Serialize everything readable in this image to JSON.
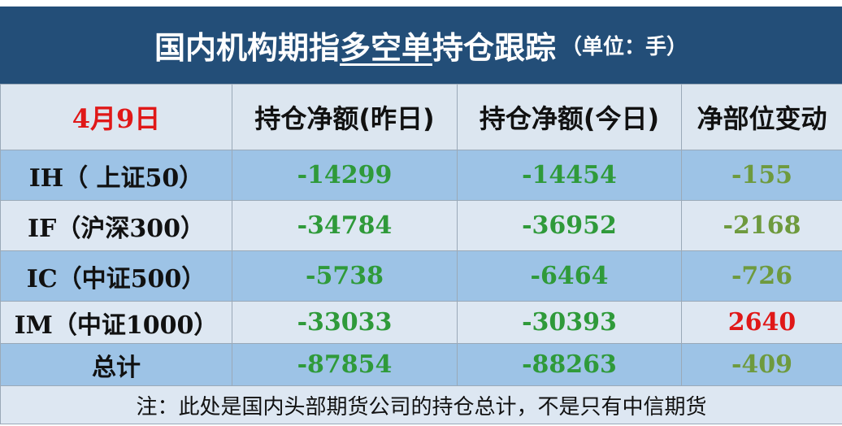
{
  "header": {
    "title": [
      "国内机构期指",
      "多空单",
      "持仓跟踪"
    ],
    "unit": "（单位：手）"
  },
  "table": {
    "columns": [
      "4月9日",
      "持仓净额(昨日)",
      "持仓净额(今日)",
      "净部位变动"
    ],
    "rows": [
      [
        "IH（ 上证50）",
        -14299,
        -14454,
        -155
      ],
      [
        "IF（沪深300）",
        -34784,
        -36952,
        -2168
      ],
      [
        "IC（中证500）",
        -5738,
        -6464,
        -726
      ],
      [
        "IM（中证1000）",
        -33033,
        -30393,
        2640
      ],
      [
        "总计",
        -87854,
        -88263,
        -409
      ]
    ]
  },
  "note": "注：此处是国内头部期货公司的持仓总计，不是只有中信期货"
}
